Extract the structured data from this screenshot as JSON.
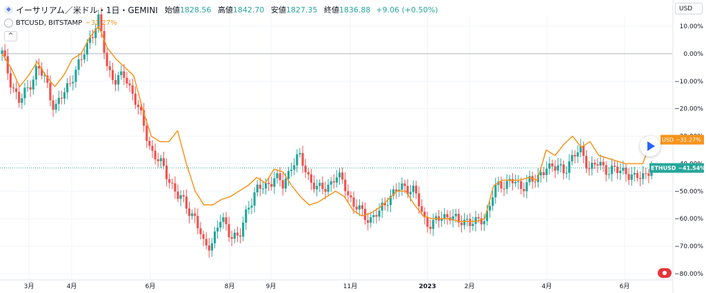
{
  "header": {
    "title": "イーサリアム／米ドル・1日・GEMINI",
    "open_label": "始値",
    "open_value": "1828.56",
    "high_label": "高値",
    "high_value": "1842.70",
    "low_label": "安値",
    "low_value": "1827.35",
    "close_label": "終値",
    "close_value": "1836.88",
    "change": "+9.06 (+0.50%)",
    "icon": "ethereum-icon"
  },
  "compare": {
    "label": "BTCUSD, BITSTAMP",
    "value": "−31.27%",
    "icon": "bitcoin-icon"
  },
  "controls": {
    "collapse_label": "^",
    "currency_label": "USD"
  },
  "colors": {
    "up": "#26a69a",
    "down": "#ef5350",
    "compare": "#f7931a",
    "grid": "#f0f3fa",
    "axis_text": "#131722"
  },
  "chart_data": {
    "type": "line",
    "y_axis": {
      "unit": "%",
      "ticks": [
        "10.00%",
        "0.00%",
        "−10.00%",
        "−20.00%",
        "−30.00%",
        "−40.00%",
        "−50.00%",
        "−60.00%",
        "−70.00%",
        "−80.00%"
      ],
      "tick_values": [
        10,
        0,
        -10,
        -20,
        -30,
        -40,
        -50,
        -60,
        -70,
        -80
      ]
    },
    "x_axis": {
      "ticks": [
        "3月",
        "4月",
        "6月",
        "8月",
        "9月",
        "11月",
        "2023",
        "2月",
        "4月",
        "6月"
      ]
    },
    "series": [
      {
        "name": "ETHUSD",
        "color": "#26a69a",
        "last_label": "ETHUSD",
        "last_value": "−41.54%",
        "values": [
          0,
          -10,
          -18,
          -12,
          -5,
          -10,
          -20,
          -15,
          -8,
          -3,
          6,
          12,
          -5,
          -10,
          -8,
          -15,
          -25,
          -35,
          -40,
          -45,
          -52,
          -55,
          -60,
          -70,
          -68,
          -60,
          -65,
          -68,
          -55,
          -50,
          -48,
          -45,
          -48,
          -40,
          -38,
          -45,
          -50,
          -48,
          -45,
          -47,
          -55,
          -58,
          -60,
          -58,
          -52,
          -50,
          -48,
          -50,
          -60,
          -62,
          -60,
          -58,
          -62,
          -60,
          -62,
          -60,
          -50,
          -48,
          -45,
          -50,
          -45,
          -47,
          -40,
          -42,
          -42,
          -38,
          -35,
          -42,
          -40,
          -42,
          -43,
          -42,
          -46,
          -44,
          -41.54
        ]
      },
      {
        "name": "BTCUSD",
        "color": "#f7931a",
        "last_label": "USD",
        "last_value": "−31.27%",
        "values": [
          0,
          -5,
          -12,
          -8,
          -3,
          -8,
          -12,
          -8,
          -2,
          0,
          6,
          10,
          2,
          -2,
          -5,
          -8,
          -20,
          -30,
          -32,
          -32,
          -28,
          -40,
          -50,
          -55,
          -55,
          -53,
          -52,
          -50,
          -48,
          -45,
          -47,
          -42,
          -43,
          -48,
          -52,
          -55,
          -54,
          -52,
          -50,
          -52,
          -57,
          -59,
          -58,
          -56,
          -53,
          -50,
          -50,
          -55,
          -59,
          -60,
          -60,
          -60,
          -61,
          -61,
          -61,
          -60,
          -48,
          -46,
          -46,
          -46,
          -45,
          -46,
          -35,
          -37,
          -33,
          -30,
          -34,
          -32,
          -37,
          -38,
          -39,
          -40,
          -40,
          -40,
          -31.27
        ]
      }
    ],
    "ylim": [
      -82,
      14
    ],
    "baseline": 0,
    "legend_position": "top-left"
  }
}
